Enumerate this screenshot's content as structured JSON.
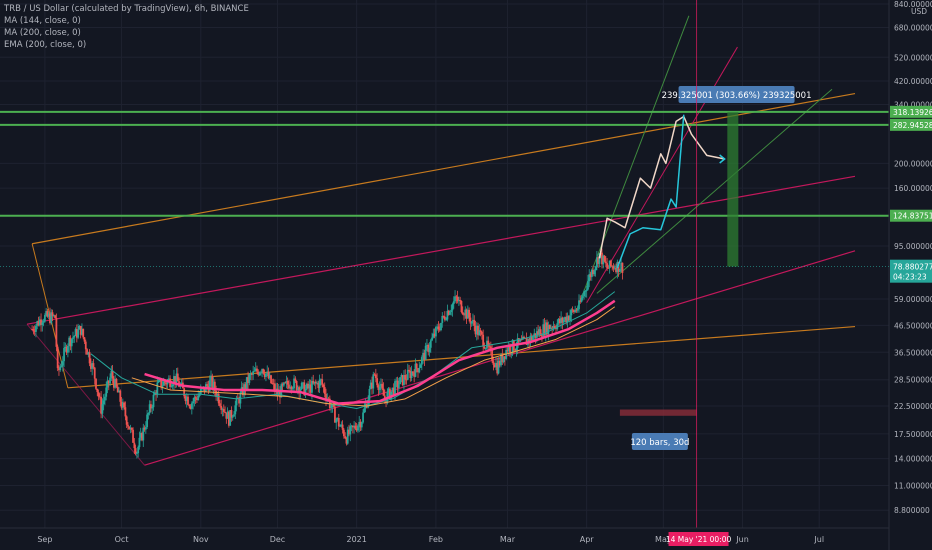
{
  "header": {
    "symbol_line": "TRB / US Dollar (calculated by TradingView), 6h, BINANCE",
    "indicators": [
      "MA (144, close, 0)",
      "MA (200, close, 0)",
      "EMA (200, close, 0)"
    ]
  },
  "colors": {
    "background": "#131722",
    "axis_text": "#b2b5be",
    "green_line": "#4caf50",
    "orange_channel": "#c77a1e",
    "pink_channel": "#c2185b",
    "fan_green": "#3f8a3f",
    "ma144": "#26a69a",
    "ma200": "#f5a14a",
    "ema200": "#ff3e8f",
    "projection_white": "#f0d7c8",
    "projection_blue": "#26c6da",
    "callout": "#4a7bb4",
    "current_price": "#26a69a",
    "date_marker": "#e91e63"
  },
  "chart_data": {
    "type": "candlestick",
    "symbol": "TRB / US Dollar (calculated by TradingView), 6h, BINANCE",
    "y_axis": {
      "scale": "log",
      "unit": "USD",
      "range": [
        7.5,
        840
      ],
      "tick_labels": [
        "840.000000",
        "680.000000",
        "520.000000",
        "420.000000",
        "340.000000",
        "200.000000",
        "160.000000",
        "95.000000",
        "59.000000",
        "46.500000",
        "36.500000",
        "28.500000",
        "22.500000",
        "17.500000",
        "14.000000",
        "11.000000",
        "8.800000"
      ],
      "tick_values": [
        840,
        680,
        520,
        420,
        340,
        200,
        160,
        95,
        59,
        46.5,
        36.5,
        28.5,
        22.5,
        17.5,
        14,
        11,
        8.8
      ]
    },
    "x_axis": {
      "tick_labels": [
        "Sep",
        "Oct",
        "Nov",
        "Dec",
        "2021",
        "Feb",
        "Mar",
        "Apr",
        "May",
        "Jun",
        "Jul"
      ],
      "tick_dates": [
        "2020-09-01",
        "2020-10-01",
        "2020-11-01",
        "2020-12-01",
        "2021-01-01",
        "2021-02-01",
        "2021-03-01",
        "2021-04-01",
        "2021-05-01",
        "2021-06-01",
        "2021-07-01"
      ],
      "range": [
        "2020-08-25",
        "2021-07-15"
      ]
    },
    "price_path": [
      [
        "2020-08-27",
        45
      ],
      [
        "2020-08-31",
        50
      ],
      [
        "2020-09-05",
        50
      ],
      [
        "2020-09-06",
        30
      ],
      [
        "2020-09-10",
        40
      ],
      [
        "2020-09-15",
        45
      ],
      [
        "2020-09-20",
        31
      ],
      [
        "2020-09-23",
        22
      ],
      [
        "2020-09-27",
        30
      ],
      [
        "2020-10-03",
        20
      ],
      [
        "2020-10-07",
        15
      ],
      [
        "2020-10-15",
        27
      ],
      [
        "2020-10-22",
        29
      ],
      [
        "2020-10-28",
        23
      ],
      [
        "2020-11-05",
        28
      ],
      [
        "2020-11-12",
        20
      ],
      [
        "2020-11-20",
        29
      ],
      [
        "2020-11-25",
        32
      ],
      [
        "2020-12-01",
        25
      ],
      [
        "2020-12-06",
        28
      ],
      [
        "2020-12-12",
        26
      ],
      [
        "2020-12-18",
        28
      ],
      [
        "2020-12-24",
        20
      ],
      [
        "2020-12-28",
        17
      ],
      [
        "2021-01-03",
        20
      ],
      [
        "2021-01-08",
        30
      ],
      [
        "2021-01-12",
        24
      ],
      [
        "2021-01-18",
        28
      ],
      [
        "2021-01-25",
        32
      ],
      [
        "2021-01-30",
        40
      ],
      [
        "2021-02-05",
        52
      ],
      [
        "2021-02-09",
        59
      ],
      [
        "2021-02-14",
        50
      ],
      [
        "2021-02-20",
        40
      ],
      [
        "2021-02-25",
        32
      ],
      [
        "2021-03-01",
        38
      ],
      [
        "2021-03-08",
        40
      ],
      [
        "2021-03-15",
        45
      ],
      [
        "2021-03-22",
        48
      ],
      [
        "2021-03-29",
        55
      ],
      [
        "2021-04-02",
        72
      ],
      [
        "2021-04-06",
        88
      ],
      [
        "2021-04-09",
        78
      ],
      [
        "2021-04-12",
        80
      ],
      [
        "2021-04-15",
        78.89
      ]
    ],
    "series": [
      {
        "name": "MA (144, close, 0)",
        "values": [
          [
            "2020-09-19",
            36
          ],
          [
            "2020-10-01",
            29
          ],
          [
            "2020-10-15",
            25
          ],
          [
            "2020-11-01",
            25
          ],
          [
            "2020-11-15",
            24
          ],
          [
            "2020-12-01",
            25
          ],
          [
            "2020-12-15",
            23.5
          ],
          [
            "2021-01-01",
            22
          ],
          [
            "2021-01-15",
            24
          ],
          [
            "2021-02-01",
            30
          ],
          [
            "2021-02-15",
            38
          ],
          [
            "2021-03-01",
            40
          ],
          [
            "2021-03-15",
            43
          ],
          [
            "2021-04-01",
            52
          ],
          [
            "2021-04-12",
            63
          ]
        ]
      },
      {
        "name": "MA (200, close, 0)",
        "values": [
          [
            "2020-10-05",
            29
          ],
          [
            "2020-10-20",
            26
          ],
          [
            "2020-11-05",
            25.5
          ],
          [
            "2020-11-20",
            25
          ],
          [
            "2020-12-05",
            24.5
          ],
          [
            "2020-12-20",
            23
          ],
          [
            "2021-01-05",
            22.5
          ],
          [
            "2021-01-20",
            24
          ],
          [
            "2021-02-05",
            29
          ],
          [
            "2021-02-20",
            34
          ],
          [
            "2021-03-05",
            37
          ],
          [
            "2021-03-20",
            41
          ],
          [
            "2021-04-05",
            49
          ],
          [
            "2021-04-12",
            55
          ]
        ]
      },
      {
        "name": "EMA (200, close, 0)",
        "values": [
          [
            "2020-10-10",
            30
          ],
          [
            "2020-10-25",
            27
          ],
          [
            "2020-11-10",
            26
          ],
          [
            "2020-11-25",
            26
          ],
          [
            "2020-12-10",
            25.5
          ],
          [
            "2020-12-25",
            23
          ],
          [
            "2021-01-10",
            23.5
          ],
          [
            "2021-01-25",
            27
          ],
          [
            "2021-02-10",
            34
          ],
          [
            "2021-02-25",
            38
          ],
          [
            "2021-03-10",
            40
          ],
          [
            "2021-03-25",
            45
          ],
          [
            "2021-04-05",
            52
          ],
          [
            "2021-04-12",
            58
          ]
        ]
      }
    ],
    "horizontal_lines": [
      {
        "price": 318.139262,
        "label": "318.139262"
      },
      {
        "price": 282.94528,
        "label": "282.945280"
      },
      {
        "price": 124.837515,
        "label": "124.837515"
      }
    ],
    "current_price": {
      "label": "78.880277",
      "countdown": "04:23:23"
    },
    "orange_channel": {
      "upper": [
        [
          "2020-08-27",
          97
        ],
        [
          "2021-07-15",
          375
        ]
      ],
      "lower": [
        [
          "2020-09-10",
          26.5
        ],
        [
          "2021-07-15",
          46
        ]
      ]
    },
    "pink_channel": {
      "upper": [
        [
          "2020-08-25",
          47
        ],
        [
          "2021-07-15",
          178
        ]
      ],
      "lower": [
        [
          "2020-10-10",
          13.2
        ],
        [
          "2021-07-15",
          91
        ]
      ]
    },
    "fan_lines": [
      [
        [
          "2021-03-28",
          53
        ],
        [
          "2021-05-11",
          755
        ]
      ],
      [
        [
          "2021-04-01",
          57
        ],
        [
          "2021-05-30",
          570
        ]
      ],
      [
        [
          "2021-04-05",
          62
        ],
        [
          "2021-07-06",
          390
        ]
      ]
    ],
    "projection_main": [
      [
        "2021-04-06",
        85
      ],
      [
        "2021-04-09",
        122
      ],
      [
        "2021-04-12",
        118
      ],
      [
        "2021-04-16",
        112
      ],
      [
        "2021-04-22",
        175
      ],
      [
        "2021-04-26",
        160
      ],
      [
        "2021-04-30",
        218
      ],
      [
        "2021-05-02",
        200
      ],
      [
        "2021-05-06",
        292
      ],
      [
        "2021-05-09",
        305
      ],
      [
        "2021-05-12",
        260
      ],
      [
        "2021-05-18",
        215
      ],
      [
        "2021-05-25",
        208
      ]
    ],
    "projection_alt": [
      [
        "2021-04-13",
        78
      ],
      [
        "2021-04-18",
        106
      ],
      [
        "2021-04-23",
        112
      ],
      [
        "2021-04-30",
        110
      ],
      [
        "2021-05-04",
        145
      ],
      [
        "2021-05-06",
        135
      ],
      [
        "2021-05-09",
        310
      ]
    ],
    "measure": {
      "label": "239.325001 (303.66%) 239325001",
      "from": [
        "2021-05-28",
        79
      ],
      "to": [
        "2021-05-28",
        318
      ]
    },
    "date_range": {
      "label": "120 bars, 30d",
      "start": [
        "2021-04-14",
        20.6
      ],
      "end": [
        "2021-05-14",
        21.8
      ]
    },
    "crosshair": {
      "date": "2021-05-14",
      "label": "14 May '21   00:00"
    }
  }
}
